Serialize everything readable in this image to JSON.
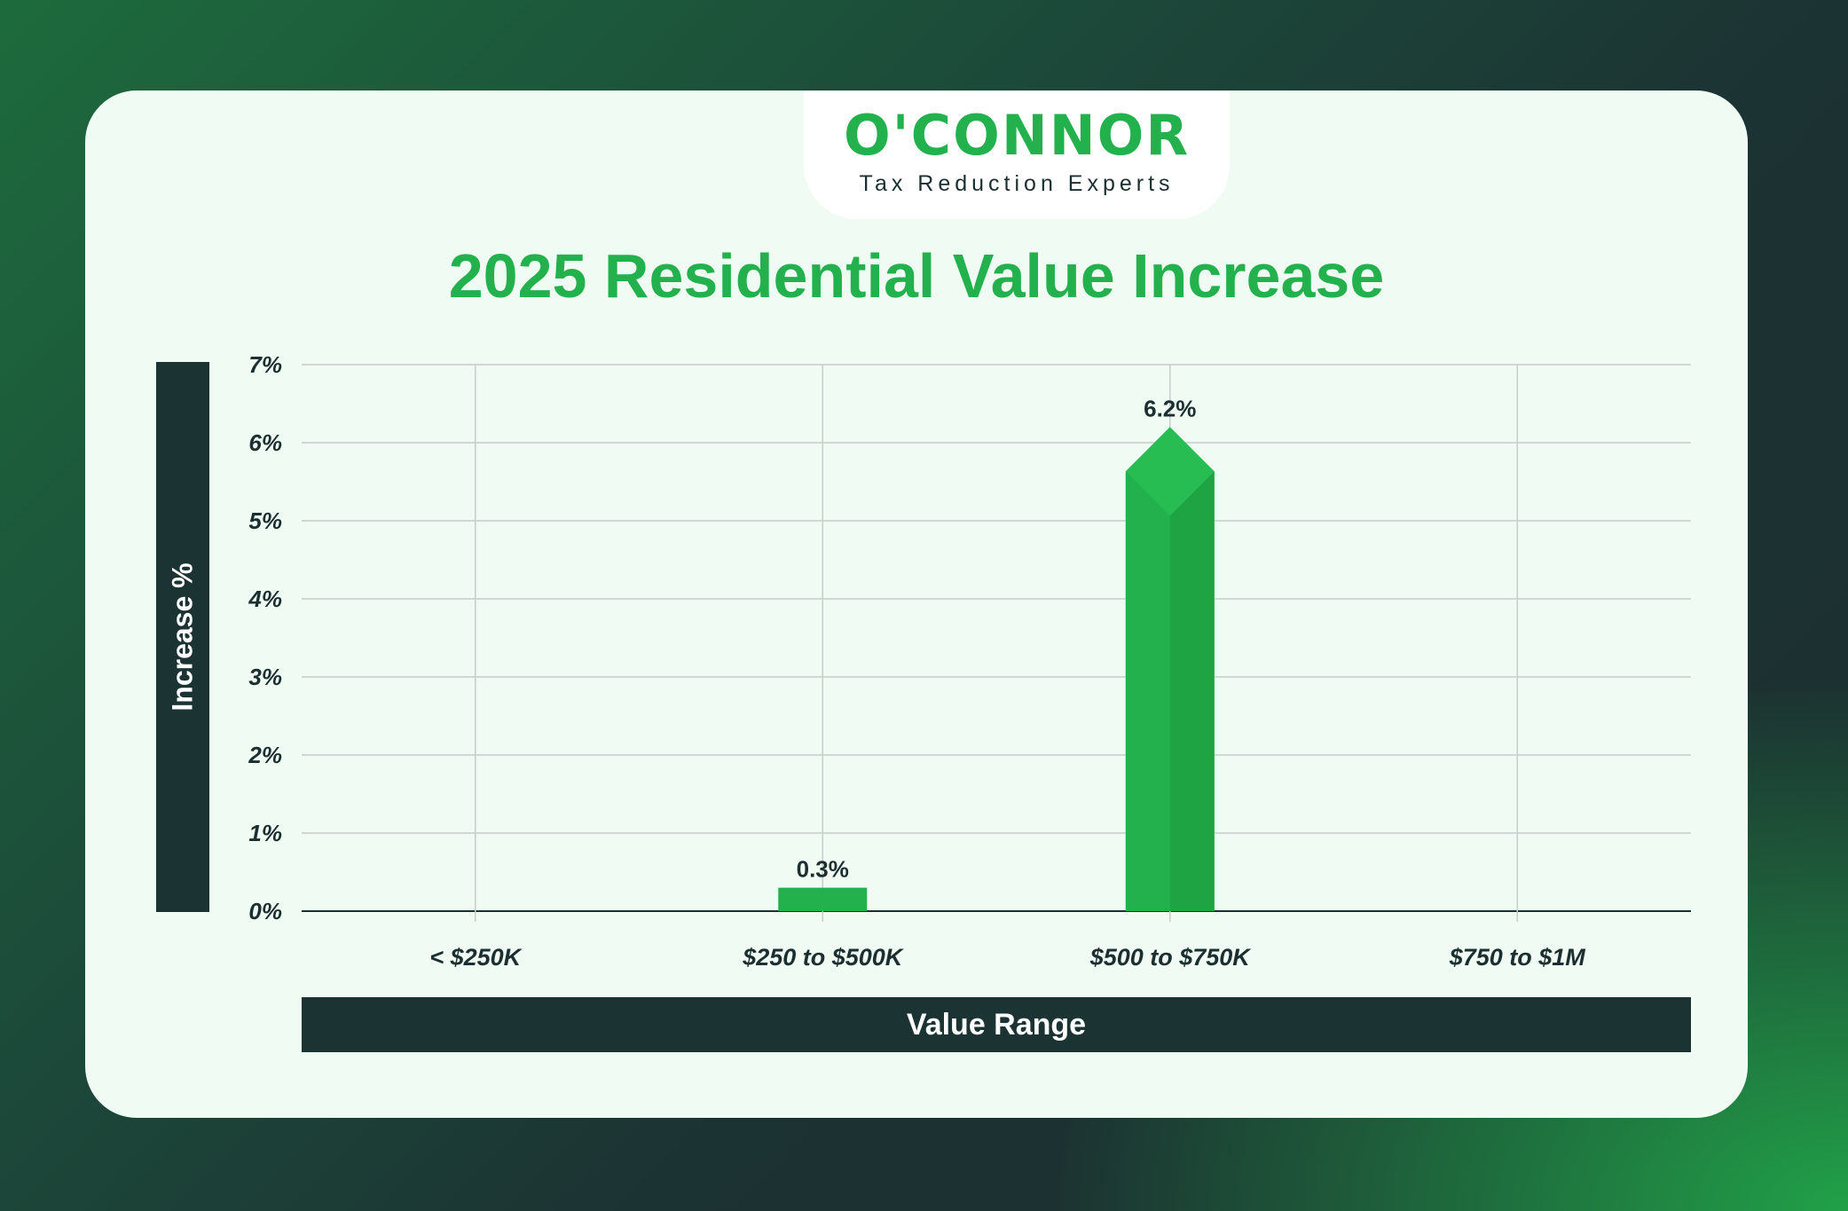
{
  "brand": {
    "name": "O'CONNOR",
    "tagline": "Tax Reduction Experts",
    "accent_color": "#22b14c",
    "dark_color": "#1c3333"
  },
  "chart_data": {
    "type": "bar",
    "title": "2025 Residential Value Increase",
    "xlabel": "Value Range",
    "ylabel": "Increase %",
    "categories": [
      "< $250K",
      "$250 to $500K",
      "$500 to $750K",
      "$750 to $1M"
    ],
    "values": [
      0,
      0.3,
      6.2,
      0
    ],
    "data_labels": [
      "",
      "0.3%",
      "6.2%",
      ""
    ],
    "ylim": [
      0,
      7
    ],
    "yticks": [
      0,
      1,
      2,
      3,
      4,
      5,
      6,
      7
    ],
    "ytick_labels": [
      "0%",
      "1%",
      "2%",
      "3%",
      "4%",
      "5%",
      "6%",
      "7%"
    ],
    "grid": true,
    "legend": "none",
    "bar_color": "#22b14c"
  }
}
